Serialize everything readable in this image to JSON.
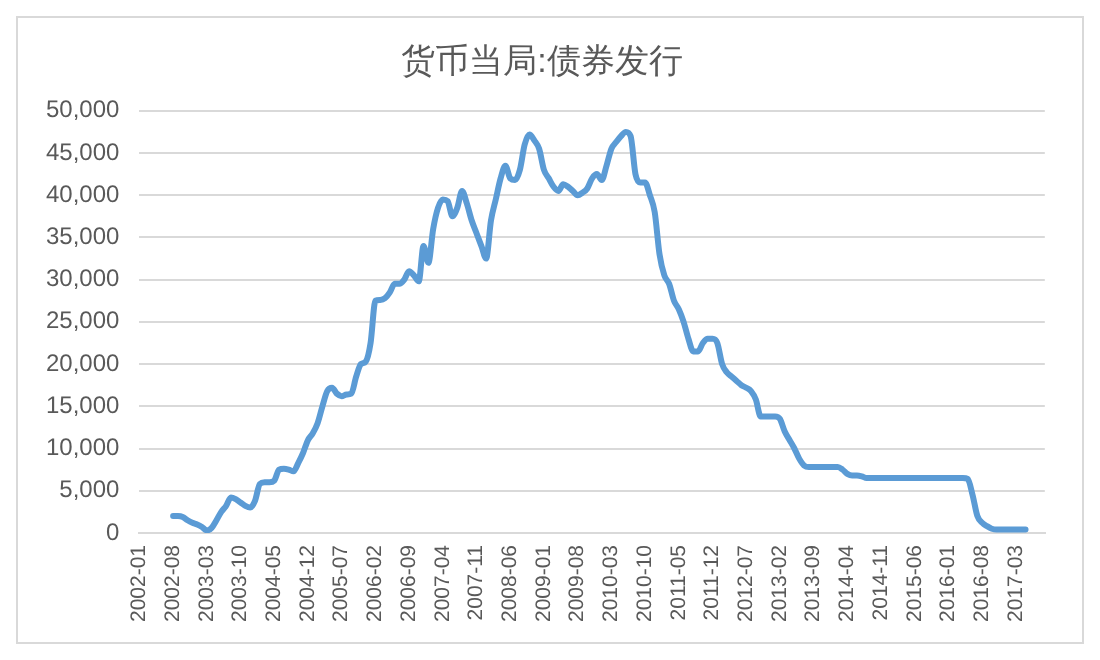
{
  "chart_data": {
    "type": "line",
    "title": "货币当局:债券发行",
    "categories": [
      "2002-01",
      null,
      null,
      null,
      null,
      null,
      null,
      "2002-08",
      null,
      null,
      null,
      null,
      null,
      null,
      "2003-03",
      null,
      null,
      null,
      null,
      null,
      null,
      "2003-10",
      null,
      null,
      null,
      null,
      null,
      null,
      "2004-05",
      null,
      null,
      null,
      null,
      null,
      null,
      "2004-12",
      null,
      null,
      null,
      null,
      null,
      null,
      "2005-07",
      null,
      null,
      null,
      null,
      null,
      null,
      "2006-02",
      null,
      null,
      null,
      null,
      null,
      null,
      "2006-09",
      null,
      null,
      null,
      null,
      null,
      null,
      "2007-04",
      null,
      null,
      null,
      null,
      null,
      null,
      "2007-11",
      null,
      null,
      null,
      null,
      null,
      null,
      "2008-06",
      null,
      null,
      null,
      null,
      null,
      null,
      "2009-01",
      null,
      null,
      null,
      null,
      null,
      null,
      "2009-08",
      null,
      null,
      null,
      null,
      null,
      null,
      "2010-03",
      null,
      null,
      null,
      null,
      null,
      null,
      "2010-10",
      null,
      null,
      null,
      null,
      null,
      null,
      "2011-05",
      null,
      null,
      null,
      null,
      null,
      null,
      "2011-12",
      null,
      null,
      null,
      null,
      null,
      null,
      "2012-07",
      null,
      null,
      null,
      null,
      null,
      null,
      "2013-02",
      null,
      null,
      null,
      null,
      null,
      null,
      "2013-09",
      null,
      null,
      null,
      null,
      null,
      null,
      "2014-04",
      null,
      null,
      null,
      null,
      null,
      null,
      "2014-11",
      null,
      null,
      null,
      null,
      null,
      null,
      "2015-06",
      null,
      null,
      null,
      null,
      null,
      null,
      "2016-01",
      null,
      null,
      null,
      null,
      null,
      null,
      "2016-08",
      null,
      null,
      null,
      null,
      null,
      null,
      "2017-03",
      null,
      null,
      null,
      null,
      null,
      null
    ],
    "series": [
      {
        "color": "#5b9bd5",
        "values": [
          null,
          null,
          null,
          null,
          null,
          null,
          null,
          2000,
          2000,
          1900,
          1500,
          1200,
          1000,
          700,
          300,
          600,
          1500,
          2500,
          3200,
          4200,
          4000,
          3600,
          3200,
          3000,
          3800,
          5800,
          6000,
          6000,
          6200,
          7500,
          7600,
          7500,
          7300,
          8300,
          9500,
          11000,
          11800,
          13000,
          15000,
          16800,
          17200,
          16500,
          16200,
          16400,
          16500,
          18500,
          20000,
          20300,
          22500,
          27500,
          27600,
          27800,
          28500,
          29500,
          29500,
          30000,
          31000,
          30500,
          29800,
          34000,
          32000,
          36000,
          38500,
          39500,
          39300,
          37500,
          38500,
          40500,
          39000,
          37000,
          35500,
          34000,
          32500,
          37000,
          39500,
          42000,
          43500,
          42000,
          41800,
          43000,
          46000,
          47200,
          46500,
          45500,
          43000,
          42000,
          41000,
          40500,
          41300,
          41000,
          40500,
          40000,
          40300,
          40800,
          42000,
          42500,
          41800,
          43500,
          45500,
          46300,
          47000,
          47500,
          47000,
          42500,
          41500,
          41500,
          40000,
          38000,
          33000,
          30500,
          29500,
          27500,
          26500,
          25000,
          23000,
          21500,
          21500,
          22500,
          23000,
          23000,
          22500,
          20000,
          19000,
          18500,
          18000,
          17500,
          17200,
          16800,
          15800,
          13800,
          13800,
          13800,
          13800,
          13500,
          12000,
          11000,
          10000,
          8800,
          8000,
          7800,
          7800,
          7800,
          7800,
          7800,
          7800,
          7800,
          7500,
          7000,
          6800,
          6800,
          6700,
          6500,
          6500,
          6500,
          6500,
          6500,
          6500,
          6500,
          6500,
          6500,
          6500,
          6500,
          6500,
          6500,
          6500,
          6500,
          6500,
          6500,
          6500,
          6500,
          6500,
          6500,
          6400,
          4500,
          2000,
          1200,
          800,
          500,
          400,
          400,
          400,
          400,
          400,
          400,
          400,
          null,
          null,
          null,
          null
        ]
      }
    ],
    "ylim": [
      0,
      50000
    ],
    "yticks": [
      0,
      {
        "value": 5000,
        "label": "5,000"
      },
      {
        "value": 10000,
        "label": "10,000"
      },
      {
        "value": 15000,
        "label": "15,000"
      },
      {
        "value": 20000,
        "label": "20,000"
      },
      {
        "value": 25000,
        "label": "25,000"
      },
      {
        "value": 30000,
        "label": "30,000"
      },
      {
        "value": 35000,
        "label": "35,000"
      },
      {
        "value": 40000,
        "label": "40,000"
      },
      {
        "value": 45000,
        "label": "45,000"
      },
      {
        "value": 50000,
        "label": "50,000"
      }
    ],
    "grid": "y",
    "legend": false,
    "marker": "none",
    "line_style": "solid"
  }
}
